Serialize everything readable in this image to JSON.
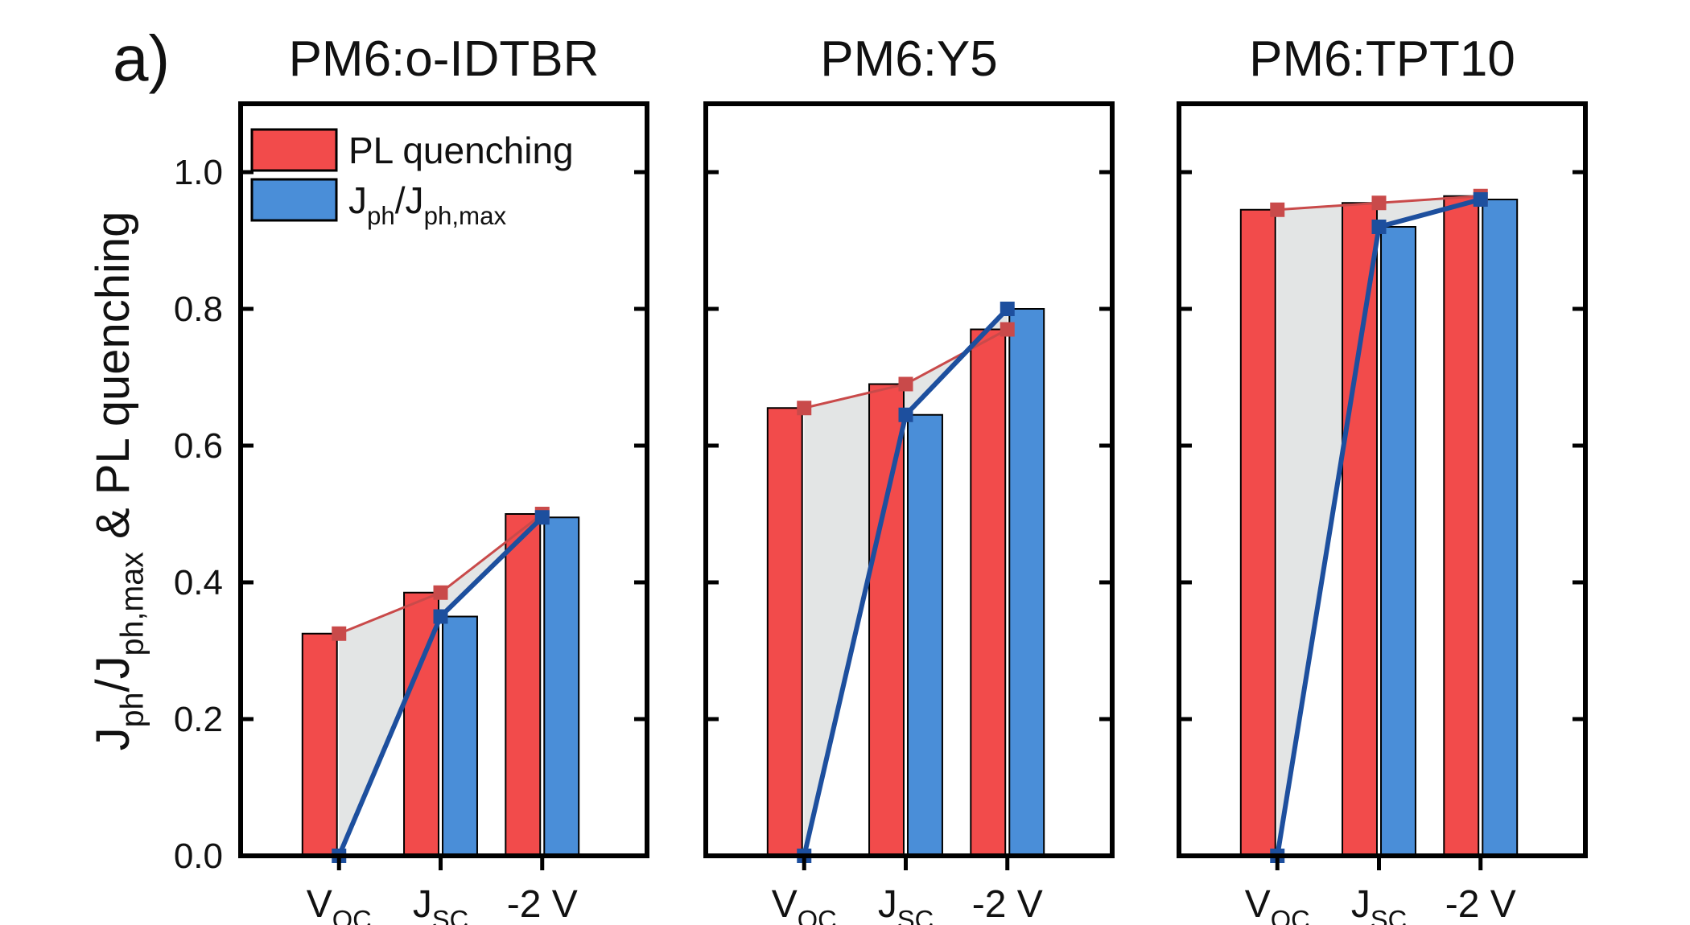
{
  "panel_label": "a)",
  "ylabel": [
    "J",
    "ph",
    "/J",
    "ph,max",
    " & PL quenching"
  ],
  "chart_data": [
    {
      "type": "bar",
      "title": "PM6:o-IDTBR",
      "categories": [
        [
          "V",
          "OC"
        ],
        [
          "J",
          "SC"
        ],
        "-2 V"
      ],
      "series": [
        {
          "name": "PL quenching",
          "color": "#f24b4b",
          "line_color": "#c94a4a",
          "values": [
            0.325,
            0.385,
            0.5
          ]
        },
        {
          "name": [
            "J",
            "ph",
            "/J",
            "ph,max"
          ],
          "color": "#4a8ed8",
          "line_color": "#1d4f9e",
          "values": [
            0,
            0.35,
            0.495
          ]
        }
      ],
      "ylim": [
        0,
        1.1
      ],
      "yticks": [
        {
          "value": 0,
          "label": "0.0"
        },
        0.2,
        0.4,
        0.6,
        0.8,
        {
          "value": 1,
          "label": "1.0"
        }
      ],
      "legend": "upper left"
    },
    {
      "type": "bar",
      "title": "PM6:Y5",
      "categories": [
        [
          "V",
          "OC"
        ],
        [
          "J",
          "SC"
        ],
        "-2 V"
      ],
      "series": [
        {
          "color": "#f24b4b",
          "line_color": "#c94a4a",
          "values": [
            0.655,
            0.69,
            0.77
          ]
        },
        {
          "color": "#4a8ed8",
          "line_color": "#1d4f9e",
          "values": [
            0,
            0.645,
            0.8
          ]
        }
      ],
      "ylim": [
        0,
        1.1
      ]
    },
    {
      "type": "bar",
      "title": "PM6:TPT10",
      "categories": [
        [
          "V",
          "OC"
        ],
        [
          "J",
          "SC"
        ],
        "-2 V"
      ],
      "series": [
        {
          "color": "#f24b4b",
          "line_color": "#c94a4a",
          "values": [
            0.945,
            0.955,
            0.965
          ]
        },
        {
          "color": "#4a8ed8",
          "line_color": "#1d4f9e",
          "values": [
            0,
            0.92,
            0.96
          ]
        }
      ],
      "ylim": [
        0,
        1.1
      ]
    }
  ]
}
